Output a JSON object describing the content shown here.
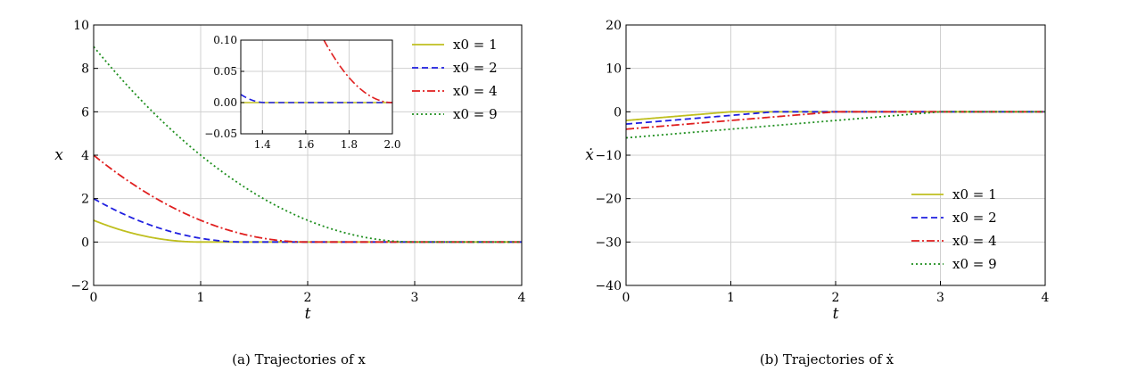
{
  "chart_data": [
    {
      "type": "line",
      "caption": "(a)  Trajectories of x",
      "xlabel": "t",
      "ylabel": "x",
      "xlim": [
        0,
        4
      ],
      "ylim": [
        -2,
        10
      ],
      "xticks": [
        "0",
        "1",
        "2",
        "3",
        "4"
      ],
      "yticks": [
        "−2",
        "0",
        "2",
        "4",
        "6",
        "8",
        "10"
      ],
      "grid": true,
      "legend": "top-right",
      "series": [
        {
          "name": "x0 = 1",
          "color": "#bfbf1f",
          "dash": "solid",
          "x0": 1
        },
        {
          "name": "x0 = 2",
          "color": "#1f1fe0",
          "dash": "dashed",
          "x0": 2
        },
        {
          "name": "x0 = 4",
          "color": "#e01f1f",
          "dash": "dashdot",
          "x0": 4
        },
        {
          "name": "x0 = 9",
          "color": "#1f8f1f",
          "dash": "dotted",
          "x0": 9
        }
      ],
      "inset": {
        "xlim": [
          1.3,
          2.0
        ],
        "ylim": [
          -0.05,
          0.1
        ],
        "xticks": [
          "1.4",
          "1.6",
          "1.8",
          "2.0"
        ],
        "yticks": [
          "−0.05",
          "0.00",
          "0.05",
          "0.10"
        ]
      }
    },
    {
      "type": "line",
      "caption": "(b)  Trajectories of ẋ",
      "xlabel": "t",
      "ylabel": "ẋ",
      "xlim": [
        0,
        4
      ],
      "ylim": [
        -40,
        20
      ],
      "xticks": [
        "0",
        "1",
        "2",
        "3",
        "4"
      ],
      "yticks": [
        "−40",
        "−30",
        "−20",
        "−10",
        "0",
        "10",
        "20"
      ],
      "grid": true,
      "legend": "lower-right",
      "series": [
        {
          "name": "x0 = 1",
          "color": "#bfbf1f",
          "dash": "solid",
          "x0": 1
        },
        {
          "name": "x0 = 2",
          "color": "#1f1fe0",
          "dash": "dashed",
          "x0": 2
        },
        {
          "name": "x0 = 4",
          "color": "#e01f1f",
          "dash": "dashdot",
          "x0": 4
        },
        {
          "name": "x0 = 9",
          "color": "#1f8f1f",
          "dash": "dotted",
          "x0": 9
        }
      ]
    }
  ]
}
